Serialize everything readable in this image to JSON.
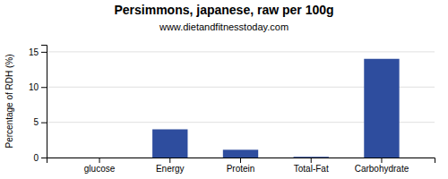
{
  "chart_data": {
    "type": "bar",
    "title": "Persimmons, japanese, raw per 100g",
    "subtitle": "www.dietandfitnesstoday.com",
    "categories": [
      "glucose",
      "Energy",
      "Protein",
      "Total-Fat",
      "Carbohydrate"
    ],
    "values": [
      0,
      4.0,
      1.1,
      0.1,
      14.0
    ],
    "color": "#2e4d9e",
    "ylabel": "Percentage of RDH (%)",
    "ylim": [
      0,
      16
    ],
    "yticks": [
      0,
      5,
      10,
      15
    ],
    "grid": true
  }
}
